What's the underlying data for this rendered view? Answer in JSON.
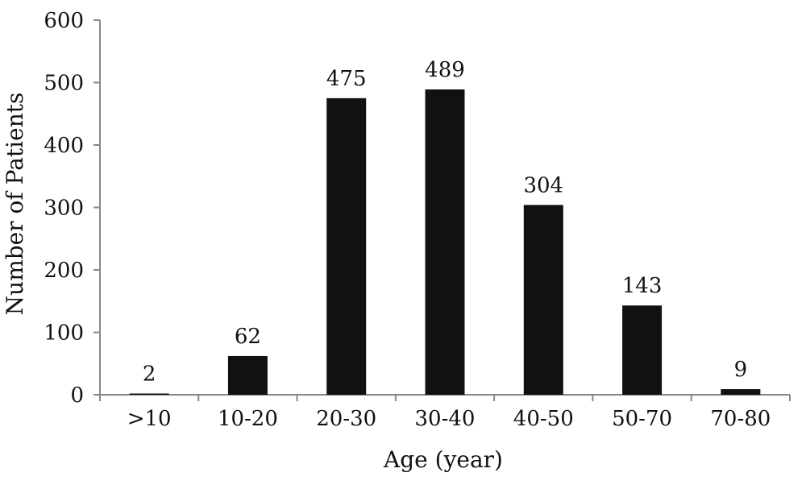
{
  "chart_data": {
    "type": "bar",
    "categories": [
      ">10",
      "10-20",
      "20-30",
      "30-40",
      "40-50",
      "50-70",
      "70-80"
    ],
    "values": [
      2,
      62,
      475,
      489,
      304,
      143,
      9
    ],
    "data_labels": [
      "2",
      "62",
      "475",
      "489",
      "304",
      "143",
      "9"
    ],
    "title": "",
    "xlabel": "Age (year)",
    "ylabel": "Number of Patients",
    "ylim": [
      0,
      600
    ],
    "yticks": [
      0,
      100,
      200,
      300,
      400,
      500,
      600
    ],
    "grid": false,
    "legend": "none",
    "bar_color": "#111111"
  }
}
